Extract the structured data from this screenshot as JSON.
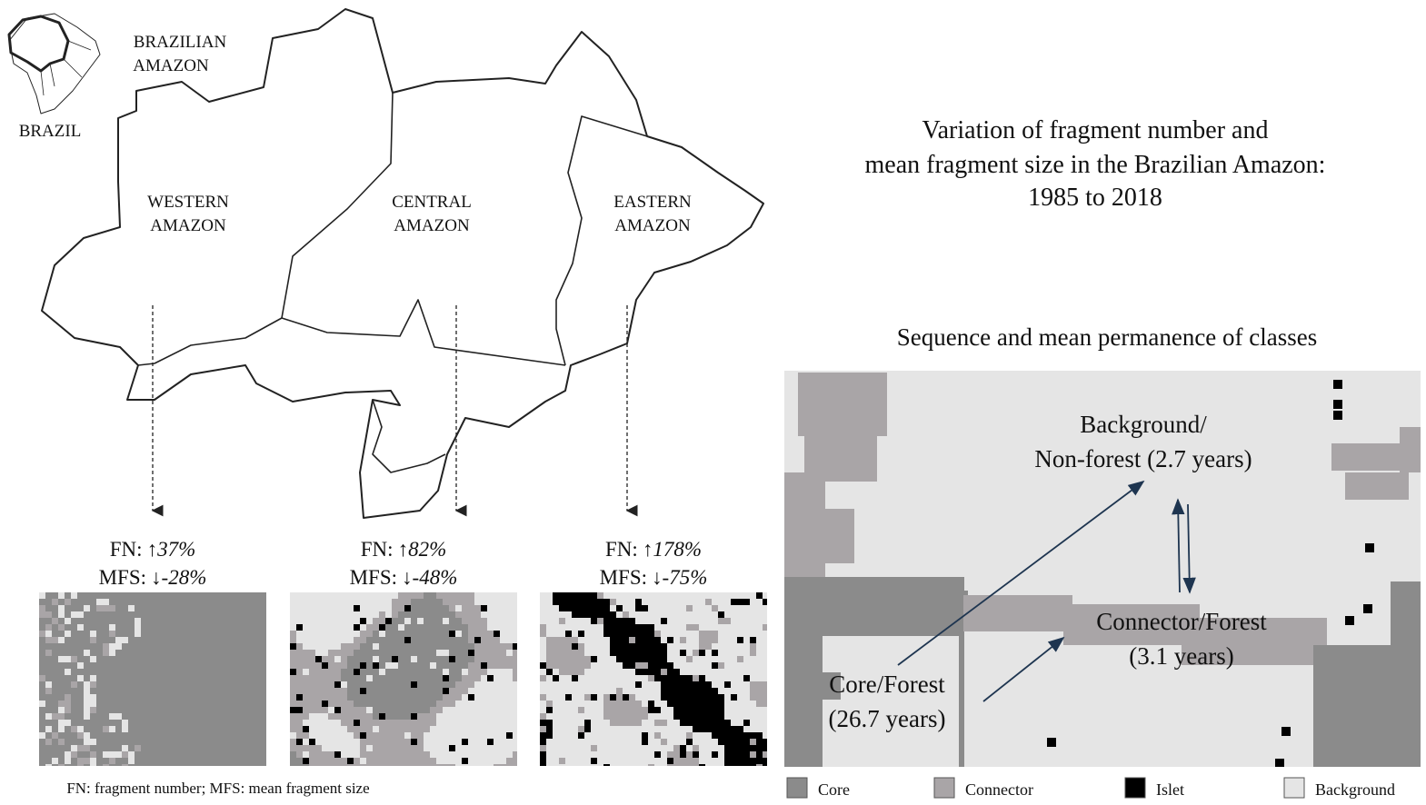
{
  "inset": {
    "region_label": [
      "BRAZILIAN",
      "AMAZON"
    ],
    "country_label": "BRAZIL"
  },
  "fn_label": "FN:",
  "mfs_label": "MFS:",
  "regions": [
    {
      "name": [
        "WESTERN",
        "AMAZON"
      ],
      "fn_arrow": "↑",
      "fn_value": "37%",
      "mfs_arrow": "↓",
      "mfs_value": "-28%"
    },
    {
      "name": [
        "CENTRAL",
        "AMAZON"
      ],
      "fn_arrow": "↑",
      "fn_value": "82%",
      "mfs_arrow": "↓",
      "mfs_value": "-48%"
    },
    {
      "name": [
        "EASTERN",
        "AMAZON"
      ],
      "fn_arrow": "↑",
      "fn_value": "178%",
      "mfs_arrow": "↓",
      "mfs_value": "-75%"
    }
  ],
  "footnote": "FN: fragment number; MFS: mean fragment size",
  "title": [
    "Variation of fragment number and",
    "mean fragment size in the Brazilian Amazon:",
    "1985 to 2018"
  ],
  "subtitle": "Sequence and mean permanence of classes",
  "classes": {
    "background": [
      "Background/",
      "Non-forest (2.7 years)"
    ],
    "connector": [
      "Connector/Forest",
      "(3.1 years)"
    ],
    "core": [
      "Core/Forest",
      "(26.7 years)"
    ]
  },
  "legend": [
    {
      "label": "Core",
      "color": "#8b8b8b"
    },
    {
      "label": "Connector",
      "color": "#a9a5a7"
    },
    {
      "label": "Islet",
      "color": "#000000"
    },
    {
      "label": "Background",
      "color": "#e5e5e5"
    }
  ]
}
